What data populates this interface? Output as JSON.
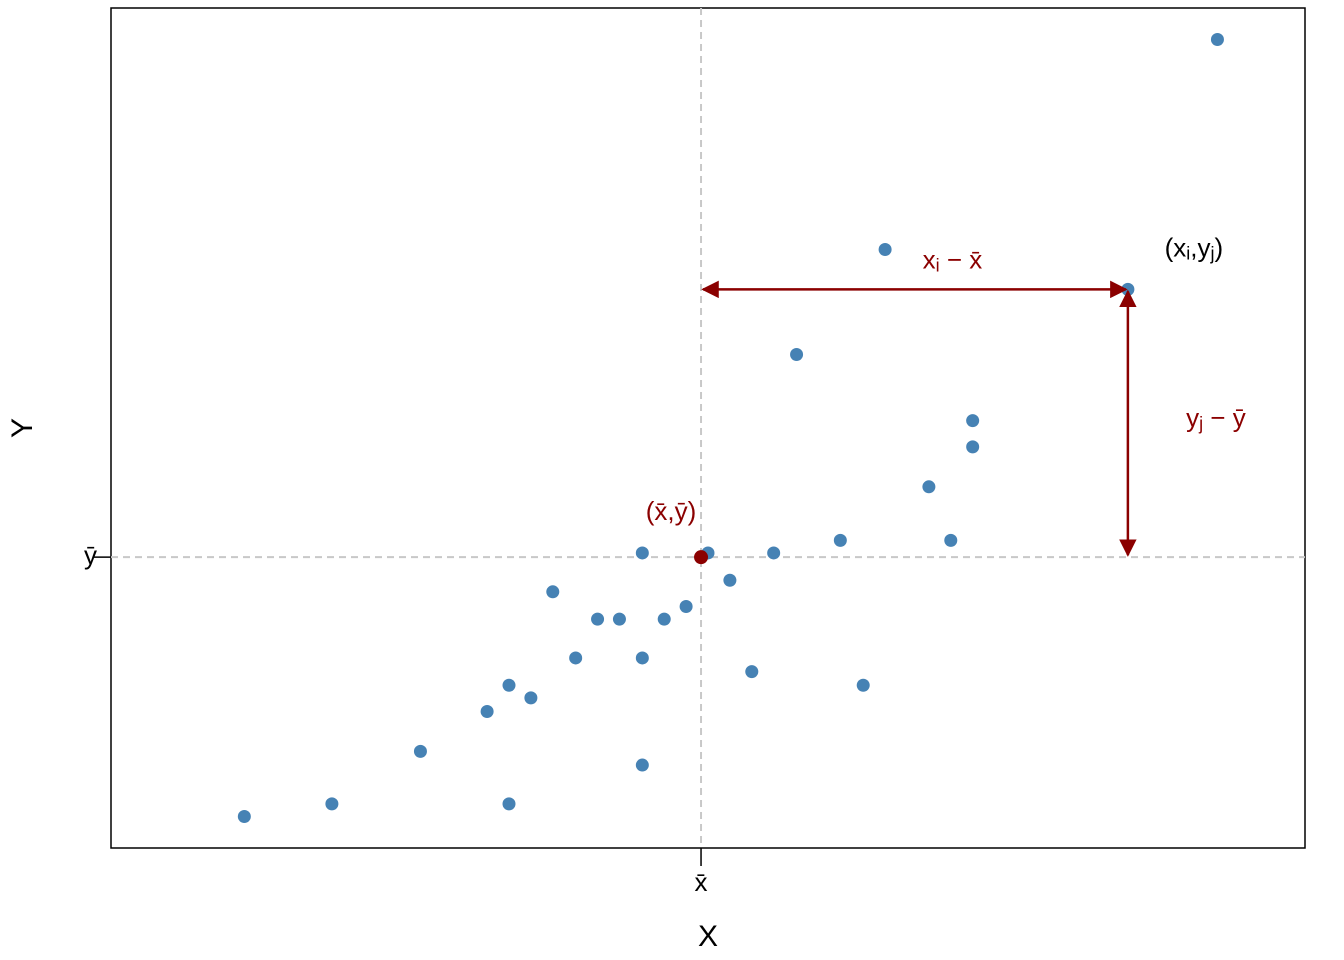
{
  "chart_data": {
    "type": "scatter",
    "x_label": "X",
    "y_label": "Y",
    "x": [
      1.34,
      2.22,
      3.11,
      3.78,
      4.0,
      4.0,
      4.22,
      4.44,
      4.67,
      4.89,
      5.11,
      5.34,
      5.34,
      5.34,
      5.56,
      5.78,
      6.0,
      6.22,
      6.44,
      6.66,
      6.89,
      7.33,
      7.56,
      7.78,
      8.22,
      8.44,
      8.66,
      8.66,
      10.22,
      11.12
    ],
    "y": [
      0.3,
      0.42,
      0.92,
      1.3,
      1.55,
      0.42,
      1.43,
      2.44,
      1.81,
      2.18,
      2.18,
      2.81,
      1.81,
      0.79,
      2.18,
      2.3,
      2.81,
      2.55,
      1.68,
      2.81,
      4.7,
      2.93,
      1.55,
      5.7,
      3.44,
      2.93,
      3.82,
      4.07,
      5.32,
      7.7
    ],
    "color": "#4682b4",
    "mean_color": "#8b0000",
    "highlight_index": 28,
    "xlim": [
      0,
      12
    ],
    "ylim": [
      0,
      8
    ],
    "xticks": [
      {
        "value": 5.93,
        "label": "x̄"
      }
    ],
    "yticks": [
      {
        "value": 2.77,
        "label": "ȳ"
      }
    ],
    "annotations": {
      "mean_label": "(x̄,ȳ)",
      "point_label": [
        {
          "text": "(x"
        },
        {
          "text": "i",
          "sub": true
        },
        {
          "text": ",y"
        },
        {
          "text": "j",
          "sub": true
        },
        {
          "text": ")"
        }
      ],
      "x_diff_label": [
        {
          "text": "x"
        },
        {
          "text": "i",
          "sub": true
        },
        {
          "text": " − x̄"
        }
      ],
      "y_diff_label": [
        {
          "text": "y"
        },
        {
          "text": "j",
          "sub": true
        },
        {
          "text": " − ȳ"
        }
      ]
    }
  }
}
